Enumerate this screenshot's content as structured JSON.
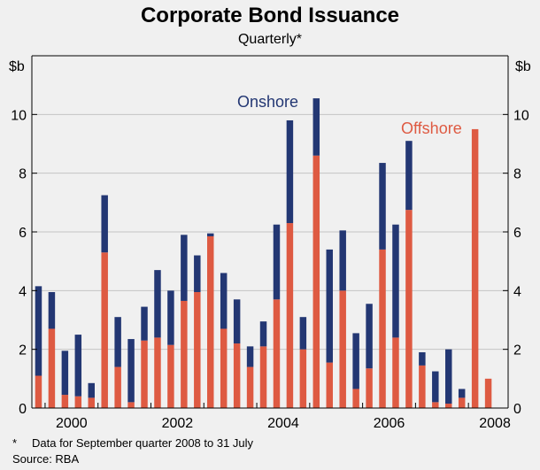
{
  "chart_data": {
    "type": "bar",
    "stacked": true,
    "title": "Corporate Bond Issuance",
    "subtitle": "Quarterly*",
    "ylabel_left": "$b",
    "ylabel_right": "$b",
    "ylim": [
      0,
      12
    ],
    "yticks": [
      0,
      2,
      4,
      6,
      8,
      10
    ],
    "xlim": [
      1999.75,
      2008.75
    ],
    "xticks": [
      2000,
      2002,
      2004,
      2006,
      2008
    ],
    "x": [
      1999.875,
      2000.125,
      2000.375,
      2000.625,
      2000.875,
      2001.125,
      2001.375,
      2001.625,
      2001.875,
      2002.125,
      2002.375,
      2002.625,
      2002.875,
      2003.125,
      2003.375,
      2003.625,
      2003.875,
      2004.125,
      2004.375,
      2004.625,
      2004.875,
      2005.125,
      2005.375,
      2005.625,
      2005.875,
      2006.125,
      2006.375,
      2006.625,
      2006.875,
      2007.125,
      2007.375,
      2007.625,
      2007.875,
      2008.125,
      2008.375
    ],
    "series": [
      {
        "name": "Offshore",
        "color": "#de5a42",
        "label": "Offshore",
        "label_color": "#de5a42",
        "values": [
          1.1,
          2.7,
          0.45,
          0.4,
          0.35,
          5.3,
          1.4,
          0.2,
          2.3,
          2.4,
          2.15,
          3.65,
          3.95,
          5.85,
          2.7,
          2.2,
          1.4,
          2.1,
          3.7,
          6.3,
          2.0,
          8.6,
          1.55,
          4.0,
          0.65,
          1.35,
          5.4,
          2.4,
          6.75,
          1.45,
          0.2,
          0.15,
          0.35,
          9.5,
          1.0
        ]
      },
      {
        "name": "Onshore",
        "color": "#233773",
        "label": "Onshore",
        "label_color": "#233773",
        "values": [
          3.05,
          1.25,
          1.5,
          2.1,
          0.5,
          1.95,
          1.7,
          2.15,
          1.15,
          2.3,
          1.85,
          2.25,
          1.25,
          0.1,
          1.9,
          1.5,
          0.7,
          0.85,
          2.55,
          3.5,
          1.1,
          1.95,
          3.85,
          2.05,
          1.9,
          2.2,
          2.95,
          3.85,
          2.35,
          0.45,
          1.05,
          1.85,
          0.3,
          0,
          0
        ]
      }
    ]
  },
  "footnote": {
    "marker": "*",
    "text": "Data for September quarter 2008 to 31 July"
  },
  "source": "Source: RBA"
}
